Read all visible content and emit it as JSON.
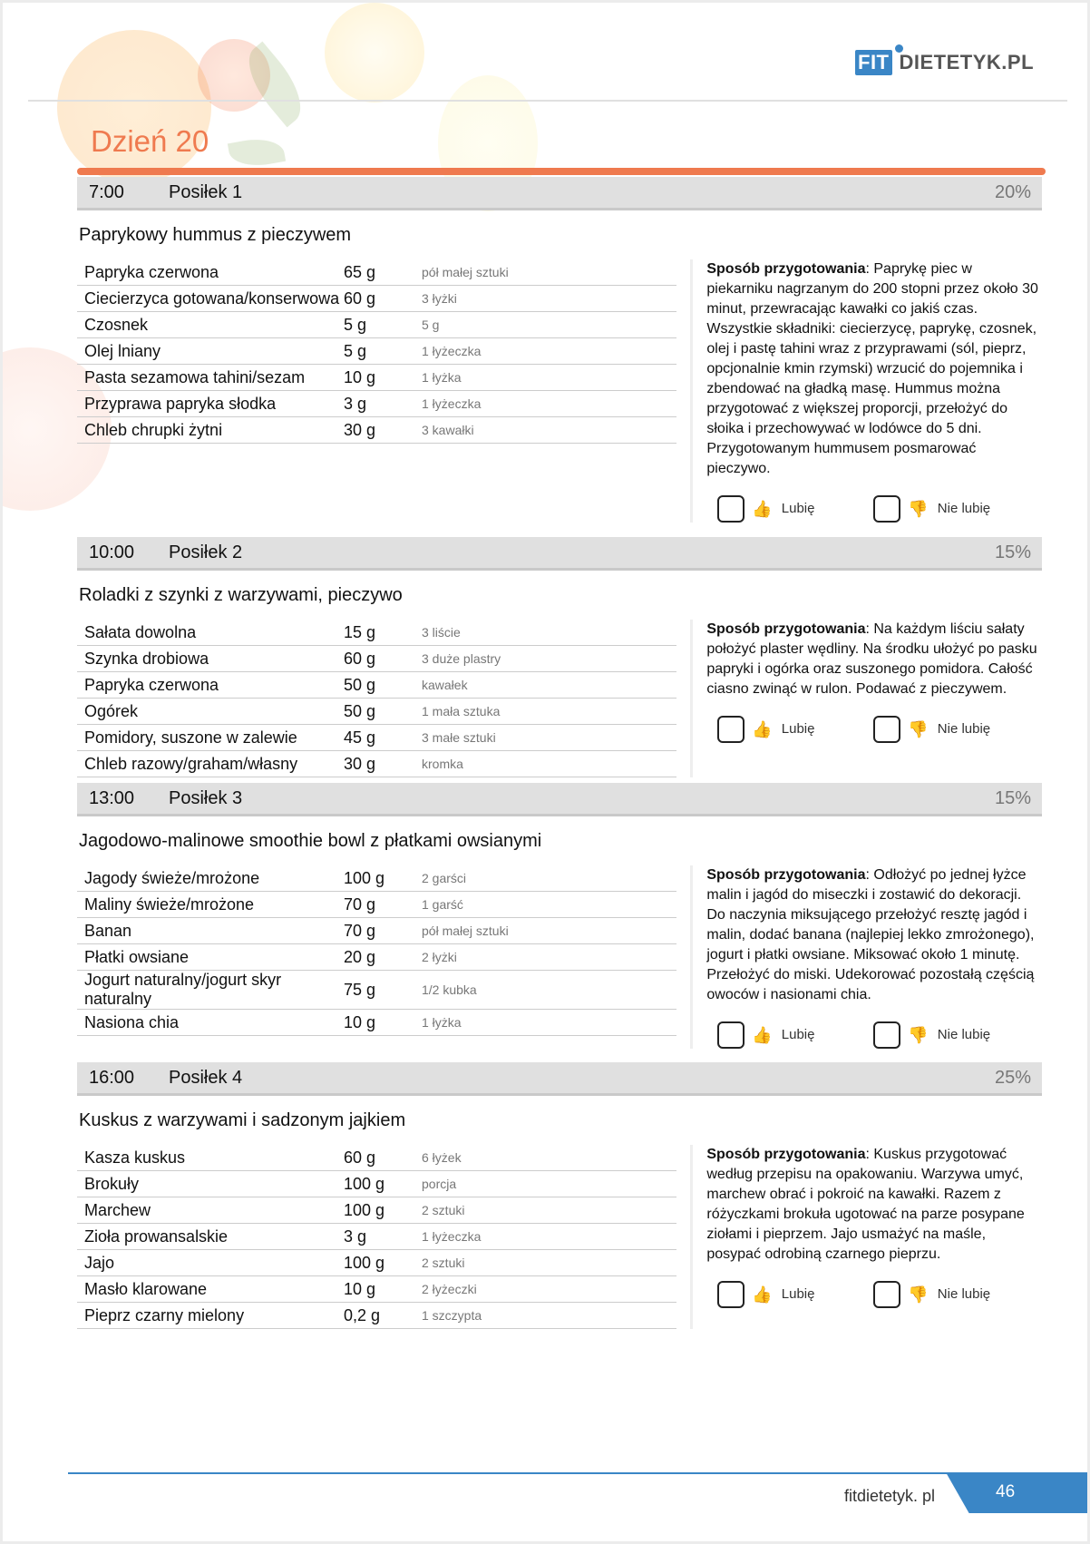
{
  "header": {
    "logo_fit": "FIT",
    "logo_rest": "DIETETYK.PL",
    "day_title": "Dzień 20"
  },
  "colors": {
    "accent": "#ef7a4f",
    "brand": "#3a86c6",
    "header_bg": "#e0e0e0"
  },
  "labels": {
    "prep": "Sposób przygotowania",
    "like": "Lubię",
    "dislike": "Nie lubię"
  },
  "meals": [
    {
      "time": "7:00",
      "name": "Posiłek 1",
      "percent": "20%",
      "dish": "Paprykowy hummus z pieczywem",
      "ingredients": [
        {
          "name": "Papryka czerwona",
          "amount": "65 g",
          "measure": "pół małej sztuki"
        },
        {
          "name": "Ciecierzyca gotowana/konserwowa",
          "amount": "60 g",
          "measure": "3 łyżki"
        },
        {
          "name": "Czosnek",
          "amount": "5 g",
          "measure": "5 g"
        },
        {
          "name": "Olej lniany",
          "amount": "5 g",
          "measure": "1 łyżeczka"
        },
        {
          "name": "Pasta sezamowa tahini/sezam",
          "amount": "10 g",
          "measure": "1 łyżka"
        },
        {
          "name": "Przyprawa papryka słodka",
          "amount": "3 g",
          "measure": "1 łyżeczka"
        },
        {
          "name": "Chleb chrupki żytni",
          "amount": "30 g",
          "measure": "3 kawałki"
        }
      ],
      "prep": ": Paprykę piec w piekarniku nagrzanym do 200 stopni przez około 30 minut, przewracając kawałki co jakiś czas. Wszystkie składniki: ciecierzycę, paprykę, czosnek, olej i pastę tahini wraz z przyprawami (sól, pieprz, opcjonalnie kmin rzymski) wrzucić do pojemnika i zbendować na gładką masę. Hummus można przygotować z większej proporcji, przełożyć do słoika i przechowywać w lodówce do 5 dni. Przygotowanym hummusem posmarować pieczywo."
    },
    {
      "time": "10:00",
      "name": "Posiłek 2",
      "percent": "15%",
      "dish": "Roladki z szynki z warzywami, pieczywo",
      "ingredients": [
        {
          "name": "Sałata dowolna",
          "amount": "15 g",
          "measure": "3 liście"
        },
        {
          "name": "Szynka drobiowa",
          "amount": "60 g",
          "measure": "3 duże plastry"
        },
        {
          "name": "Papryka czerwona",
          "amount": "50 g",
          "measure": "kawałek"
        },
        {
          "name": "Ogórek",
          "amount": "50 g",
          "measure": "1 mała sztuka"
        },
        {
          "name": "Pomidory, suszone w zalewie",
          "amount": "45 g",
          "measure": "3 małe sztuki"
        },
        {
          "name": "Chleb razowy/graham/własny",
          "amount": "30 g",
          "measure": "kromka"
        }
      ],
      "prep": ": Na każdym liściu sałaty położyć plaster wędliny. Na środku ułożyć po pasku papryki i ogórka oraz suszonego pomidora. Całość ciasno zwinąć w rulon. Podawać z pieczywem."
    },
    {
      "time": "13:00",
      "name": "Posiłek 3",
      "percent": "15%",
      "dish": "Jagodowo-malinowe smoothie bowl z płatkami owsianymi",
      "ingredients": [
        {
          "name": "Jagody świeże/mrożone",
          "amount": "100 g",
          "measure": "2 garści"
        },
        {
          "name": "Maliny świeże/mrożone",
          "amount": "70 g",
          "measure": "1 garść"
        },
        {
          "name": "Banan",
          "amount": "70 g",
          "measure": "pół małej sztuki"
        },
        {
          "name": "Płatki owsiane",
          "amount": "20 g",
          "measure": "2 łyżki"
        },
        {
          "name": "Jogurt naturalny/jogurt skyr naturalny",
          "amount": "75 g",
          "measure": "1/2 kubka"
        },
        {
          "name": "Nasiona chia",
          "amount": "10 g",
          "measure": "1 łyżka"
        }
      ],
      "prep": ": Odłożyć po jednej łyżce malin i jagód do miseczki i zostawić do dekoracji. Do naczynia miksującego przełożyć resztę jagód i malin, dodać banana (najlepiej lekko zmrożonego), jogurt i płatki owsiane. Miksować około 1 minutę. Przełożyć do miski. Udekorować pozostałą częścią owoców i nasionami chia."
    },
    {
      "time": "16:00",
      "name": "Posiłek 4",
      "percent": "25%",
      "dish": "Kuskus z warzywami i sadzonym jajkiem",
      "ingredients": [
        {
          "name": "Kasza kuskus",
          "amount": "60 g",
          "measure": "6 łyżek"
        },
        {
          "name": "Brokuły",
          "amount": "100 g",
          "measure": "porcja"
        },
        {
          "name": "Marchew",
          "amount": "100 g",
          "measure": "2 sztuki"
        },
        {
          "name": "Zioła prowansalskie",
          "amount": "3 g",
          "measure": "1 łyżeczka"
        },
        {
          "name": "Jajo",
          "amount": "100 g",
          "measure": "2 sztuki"
        },
        {
          "name": "Masło klarowane",
          "amount": "10 g",
          "measure": "2 łyżeczki"
        },
        {
          "name": "Pieprz czarny mielony",
          "amount": "0,2 g",
          "measure": "1 szczypta"
        }
      ],
      "prep": ": Kuskus przygotować według przepisu na opakowaniu. Warzywa umyć, marchew obrać i pokroić na kawałki. Razem z różyczkami brokuła ugotować na parze posypane ziołami i pieprzem. Jajo usmażyć na maśle, posypać odrobiną czarnego pieprzu."
    }
  ],
  "footer": {
    "site": "fitdietetyk. pl",
    "page": "46"
  }
}
